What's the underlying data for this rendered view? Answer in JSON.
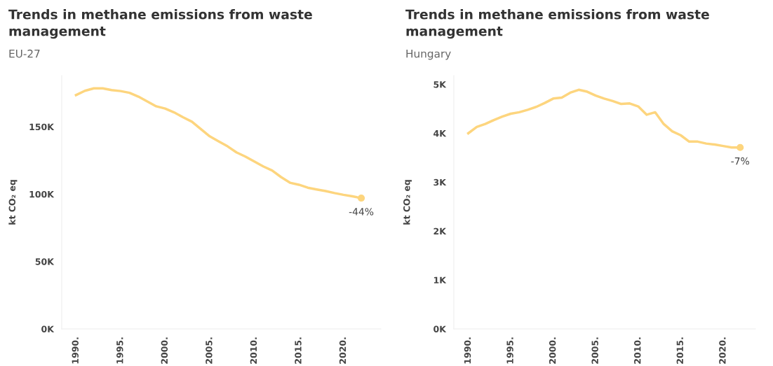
{
  "chart_data": [
    {
      "type": "line",
      "title": "Trends in methane emissions from waste management",
      "subtitle": "EU-27",
      "ylabel": "kt CO₂ eq",
      "x": [
        1990,
        1991,
        1992,
        1993,
        1994,
        1995,
        1996,
        1997,
        1998,
        1999,
        2000,
        2001,
        2002,
        2003,
        2004,
        2005,
        2006,
        2007,
        2008,
        2009,
        2010,
        2011,
        2012,
        2013,
        2014,
        2015,
        2016,
        2017,
        2018,
        2019,
        2020,
        2021,
        2022
      ],
      "series": [
        {
          "color": "#fdd57e",
          "values": [
            173500,
            176700,
            178500,
            178500,
            177200,
            176500,
            175200,
            172400,
            168800,
            165200,
            163500,
            160700,
            157100,
            153800,
            148300,
            142900,
            139200,
            135500,
            131000,
            127900,
            124200,
            120600,
            117600,
            112700,
            108500,
            107000,
            104800,
            103500,
            102300,
            100800,
            99500,
            98400,
            97100
          ]
        },
        {
          "type": "scatter",
          "color": "#fdd57e",
          "x": [
            2022
          ],
          "values": [
            97100
          ]
        }
      ],
      "annotations": [
        {
          "text": "-44%",
          "x": 2022,
          "y": 97100
        }
      ],
      "xlim": [
        1988.4,
        2024.2
      ],
      "ylim": [
        0,
        188000
      ],
      "xticks": [
        {
          "value": 1990,
          "label": "1990."
        },
        {
          "value": 1995,
          "label": "1995."
        },
        {
          "value": 2000,
          "label": "2000."
        },
        {
          "value": 2005,
          "label": "2005."
        },
        {
          "value": 2010,
          "label": "2010."
        },
        {
          "value": 2015,
          "label": "2015."
        },
        {
          "value": 2020,
          "label": "2020."
        }
      ],
      "yticks": [
        {
          "value": 0,
          "label": "0K"
        },
        {
          "value": 50000,
          "label": "50K"
        },
        {
          "value": 100000,
          "label": "100K"
        },
        {
          "value": 150000,
          "label": "150K"
        }
      ],
      "grid": false
    },
    {
      "type": "line",
      "title": "Trends in methane emissions from waste management",
      "subtitle": "Hungary",
      "ylabel": "kt CO₂ eq",
      "x": [
        1990,
        1991,
        1992,
        1993,
        1994,
        1995,
        1996,
        1997,
        1998,
        1999,
        2000,
        2001,
        2002,
        2003,
        2004,
        2005,
        2006,
        2007,
        2008,
        2009,
        2010,
        2011,
        2012,
        2013,
        2014,
        2015,
        2016,
        2017,
        2018,
        2019,
        2020,
        2021,
        2022
      ],
      "series": [
        {
          "color": "#fdd57e",
          "values": [
            4000,
            4130,
            4190,
            4270,
            4340,
            4400,
            4430,
            4480,
            4540,
            4620,
            4710,
            4730,
            4830,
            4890,
            4850,
            4770,
            4710,
            4660,
            4600,
            4610,
            4550,
            4380,
            4430,
            4190,
            4040,
            3960,
            3830,
            3830,
            3790,
            3770,
            3740,
            3710,
            3710
          ]
        },
        {
          "type": "scatter",
          "color": "#fdd57e",
          "x": [
            2022
          ],
          "values": [
            3710
          ]
        }
      ],
      "annotations": [
        {
          "text": "-7%",
          "x": 2022,
          "y": 3710
        }
      ],
      "xlim": [
        1988.3,
        2023.8
      ],
      "ylim": [
        0,
        5180
      ],
      "xticks": [
        {
          "value": 1990,
          "label": "1990."
        },
        {
          "value": 1995,
          "label": "1995."
        },
        {
          "value": 2000,
          "label": "2000."
        },
        {
          "value": 2005,
          "label": "2005."
        },
        {
          "value": 2010,
          "label": "2010."
        },
        {
          "value": 2015,
          "label": "2015."
        },
        {
          "value": 2020,
          "label": "2020."
        }
      ],
      "yticks": [
        {
          "value": 0,
          "label": "0K"
        },
        {
          "value": 1000,
          "label": "1K"
        },
        {
          "value": 2000,
          "label": "2K"
        },
        {
          "value": 3000,
          "label": "3K"
        },
        {
          "value": 4000,
          "label": "4K"
        },
        {
          "value": 5000,
          "label": "5K"
        }
      ],
      "grid": false
    }
  ]
}
